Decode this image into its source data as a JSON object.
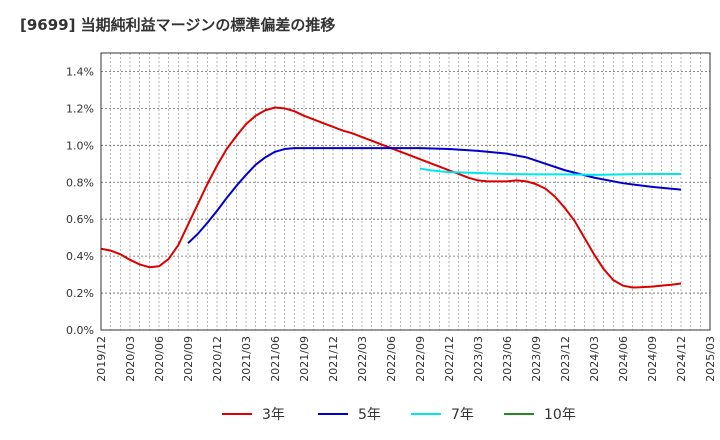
{
  "chart_data": {
    "type": "line",
    "title": "[9699]  当期純利益マージンの標準偏差の推移",
    "xlabel": "",
    "ylabel": "",
    "ylim": [
      0,
      1.5
    ],
    "y_ticks": [
      "0.0%",
      "0.2%",
      "0.4%",
      "0.6%",
      "0.8%",
      "1.0%",
      "1.2%",
      "1.4%"
    ],
    "y_tick_values": [
      0,
      0.2,
      0.4,
      0.6,
      0.8,
      1.0,
      1.2,
      1.4
    ],
    "x_ticks": [
      "2019/12",
      "2020/03",
      "2020/06",
      "2020/09",
      "2020/12",
      "2021/03",
      "2021/06",
      "2021/09",
      "2021/12",
      "2022/03",
      "2022/06",
      "2022/09",
      "2022/12",
      "2023/03",
      "2023/06",
      "2023/09",
      "2023/12",
      "2024/03",
      "2024/06",
      "2024/09",
      "2024/12",
      "2025/03"
    ],
    "grid": true,
    "legend_position": "bottom",
    "series": [
      {
        "name": "3年",
        "color": "#dd0000",
        "points": [
          [
            "2019/12",
            0.44
          ],
          [
            "2020/01",
            0.43
          ],
          [
            "2020/02",
            0.41
          ],
          [
            "2020/03",
            0.38
          ],
          [
            "2020/04",
            0.355
          ],
          [
            "2020/05",
            0.34
          ],
          [
            "2020/06",
            0.345
          ],
          [
            "2020/07",
            0.385
          ],
          [
            "2020/08",
            0.46
          ],
          [
            "2020/09",
            0.57
          ],
          [
            "2020/10",
            0.68
          ],
          [
            "2020/11",
            0.79
          ],
          [
            "2020/12",
            0.89
          ],
          [
            "2021/01",
            0.98
          ],
          [
            "2021/02",
            1.05
          ],
          [
            "2021/03",
            1.115
          ],
          [
            "2021/04",
            1.16
          ],
          [
            "2021/05",
            1.19
          ],
          [
            "2021/06",
            1.205
          ],
          [
            "2021/07",
            1.2
          ],
          [
            "2021/08",
            1.185
          ],
          [
            "2021/09",
            1.16
          ],
          [
            "2021/10",
            1.14
          ],
          [
            "2021/11",
            1.12
          ],
          [
            "2021/12",
            1.1
          ],
          [
            "2022/01",
            1.08
          ],
          [
            "2022/02",
            1.065
          ],
          [
            "2022/03",
            1.045
          ],
          [
            "2022/04",
            1.025
          ],
          [
            "2022/05",
            1.005
          ],
          [
            "2022/06",
            0.985
          ],
          [
            "2022/07",
            0.965
          ],
          [
            "2022/08",
            0.945
          ],
          [
            "2022/09",
            0.925
          ],
          [
            "2022/10",
            0.905
          ],
          [
            "2022/11",
            0.885
          ],
          [
            "2022/12",
            0.865
          ],
          [
            "2023/01",
            0.845
          ],
          [
            "2023/02",
            0.825
          ],
          [
            "2023/03",
            0.81
          ],
          [
            "2023/04",
            0.805
          ],
          [
            "2023/05",
            0.805
          ],
          [
            "2023/06",
            0.805
          ],
          [
            "2023/07",
            0.81
          ],
          [
            "2023/08",
            0.805
          ],
          [
            "2023/09",
            0.79
          ],
          [
            "2023/10",
            0.765
          ],
          [
            "2023/11",
            0.72
          ],
          [
            "2023/12",
            0.66
          ],
          [
            "2024/01",
            0.59
          ],
          [
            "2024/02",
            0.5
          ],
          [
            "2024/03",
            0.41
          ],
          [
            "2024/04",
            0.33
          ],
          [
            "2024/05",
            0.27
          ],
          [
            "2024/06",
            0.24
          ],
          [
            "2024/07",
            0.23
          ],
          [
            "2024/08",
            0.232
          ],
          [
            "2024/09",
            0.235
          ],
          [
            "2024/10",
            0.24
          ],
          [
            "2024/11",
            0.245
          ],
          [
            "2024/12",
            0.252
          ]
        ]
      },
      {
        "name": "5年",
        "color": "#0000cc",
        "points": [
          [
            "2020/09",
            0.47
          ],
          [
            "2020/10",
            0.52
          ],
          [
            "2020/11",
            0.58
          ],
          [
            "2020/12",
            0.645
          ],
          [
            "2021/01",
            0.715
          ],
          [
            "2021/02",
            0.78
          ],
          [
            "2021/03",
            0.84
          ],
          [
            "2021/04",
            0.895
          ],
          [
            "2021/05",
            0.935
          ],
          [
            "2021/06",
            0.965
          ],
          [
            "2021/07",
            0.98
          ],
          [
            "2021/08",
            0.985
          ],
          [
            "2021/09",
            0.985
          ],
          [
            "2021/10",
            0.985
          ],
          [
            "2021/11",
            0.985
          ],
          [
            "2021/12",
            0.985
          ],
          [
            "2022/03",
            0.985
          ],
          [
            "2022/06",
            0.985
          ],
          [
            "2022/09",
            0.985
          ],
          [
            "2022/12",
            0.98
          ],
          [
            "2023/03",
            0.97
          ],
          [
            "2023/06",
            0.955
          ],
          [
            "2023/08",
            0.935
          ],
          [
            "2023/10",
            0.9
          ],
          [
            "2023/12",
            0.865
          ],
          [
            "2024/03",
            0.825
          ],
          [
            "2024/06",
            0.795
          ],
          [
            "2024/09",
            0.775
          ],
          [
            "2024/12",
            0.76
          ]
        ]
      },
      {
        "name": "7年",
        "color": "#00e5ee",
        "points": [
          [
            "2022/09",
            0.875
          ],
          [
            "2022/10",
            0.865
          ],
          [
            "2022/12",
            0.855
          ],
          [
            "2023/03",
            0.85
          ],
          [
            "2023/06",
            0.845
          ],
          [
            "2023/09",
            0.843
          ],
          [
            "2023/12",
            0.843
          ],
          [
            "2024/03",
            0.84
          ],
          [
            "2024/06",
            0.843
          ],
          [
            "2024/09",
            0.845
          ],
          [
            "2024/12",
            0.845
          ]
        ]
      },
      {
        "name": "10年",
        "color": "#228b22",
        "points": []
      }
    ]
  }
}
